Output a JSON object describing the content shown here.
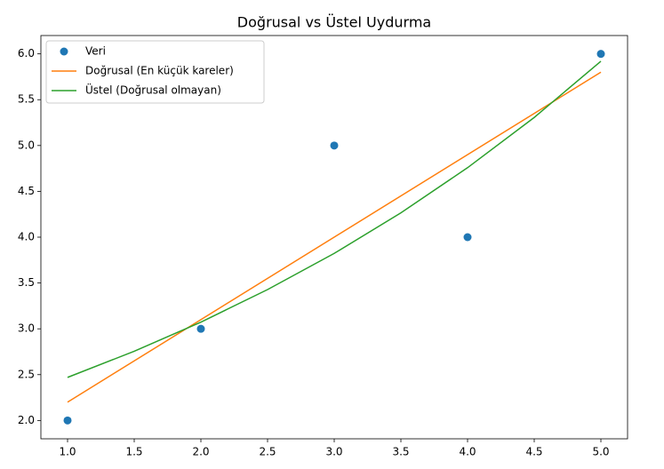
{
  "chart_data": {
    "type": "line",
    "title": "Doğrusal vs Üstel Uydurma",
    "xlim": [
      0.8,
      5.2
    ],
    "ylim": [
      1.8,
      6.2
    ],
    "xticks": [
      {
        "value": 1,
        "label": "1.0"
      },
      {
        "value": 1.5,
        "label": "1.5"
      },
      {
        "value": 2,
        "label": "2.0"
      },
      {
        "value": 2.5,
        "label": "2.5"
      },
      {
        "value": 3,
        "label": "3.0"
      },
      {
        "value": 3.5,
        "label": "3.5"
      },
      {
        "value": 4,
        "label": "4.0"
      },
      {
        "value": 4.5,
        "label": "4.5"
      },
      {
        "value": 5,
        "label": "5.0"
      }
    ],
    "yticks": [
      {
        "value": 2,
        "label": "2.0"
      },
      {
        "value": 2.5,
        "label": "2.5"
      },
      {
        "value": 3,
        "label": "3.0"
      },
      {
        "value": 3.5,
        "label": "3.5"
      },
      {
        "value": 4,
        "label": "4.0"
      },
      {
        "value": 4.5,
        "label": "4.5"
      },
      {
        "value": 5,
        "label": "5.0"
      },
      {
        "value": 5.5,
        "label": "5.5"
      },
      {
        "value": 6,
        "label": "6.0"
      }
    ],
    "legend": "upper left",
    "series": [
      {
        "name": "Veri",
        "color": "#1f77b4",
        "style": "markers",
        "x": [
          1,
          2,
          3,
          4,
          5
        ],
        "values": [
          2,
          3,
          5,
          4,
          6
        ]
      },
      {
        "name": "Doğrusal (En küçük kareler)",
        "color": "#ff7f0e",
        "style": "line",
        "x": [
          1,
          5
        ],
        "values": [
          2.2,
          5.8
        ]
      },
      {
        "name": "Üstel (Doğrusal olmayan)",
        "color": "#2ca02c",
        "style": "line",
        "x": [
          1,
          1.5,
          2,
          2.5,
          3,
          3.5,
          4,
          4.5,
          5
        ],
        "values": [
          2.47,
          2.755,
          3.073,
          3.428,
          3.823,
          4.265,
          4.758,
          5.306,
          5.92
        ]
      }
    ]
  }
}
